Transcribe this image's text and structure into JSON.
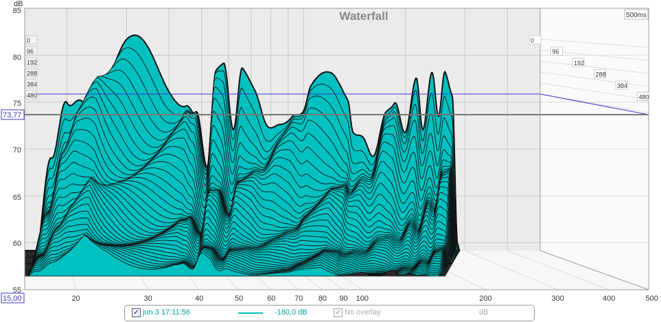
{
  "chart_data": {
    "type": "waterfall",
    "title": "Waterfall",
    "ylabel": "dB",
    "xlabel": "Hz",
    "ylim": [
      55,
      85
    ],
    "xlim": [
      15,
      500
    ],
    "xscale": "log",
    "y_ticks": [
      "85",
      "80",
      "75",
      "70",
      "65",
      "60",
      "55"
    ],
    "x_ticks": [
      "20",
      "30",
      "40",
      "50",
      "60",
      "70",
      "80",
      "90",
      "100",
      "200",
      "300",
      "400",
      "500 Hz"
    ],
    "time_ticks_ms": [
      "0",
      "96",
      "192",
      "288",
      "384",
      "480"
    ],
    "time_range_label": "500ms",
    "cursor_db": "73,77",
    "cursor_freq": "15,00",
    "fill_color": "#00c0c0",
    "top_slice": [
      [
        16,
        58
      ],
      [
        18,
        68
      ],
      [
        20,
        76
      ],
      [
        22,
        78.6
      ],
      [
        24,
        79
      ],
      [
        27,
        78
      ],
      [
        30,
        78.5
      ],
      [
        35,
        78.6
      ],
      [
        40,
        78.4
      ],
      [
        45,
        78
      ],
      [
        48,
        76
      ],
      [
        52,
        68
      ],
      [
        55,
        76.5
      ],
      [
        58,
        76.3
      ],
      [
        62,
        70
      ],
      [
        66,
        76.3
      ],
      [
        72,
        76.2
      ],
      [
        78,
        74.5
      ],
      [
        85,
        75.7
      ],
      [
        92,
        75.5
      ],
      [
        100,
        74
      ],
      [
        105,
        75.3
      ],
      [
        120,
        75.2
      ],
      [
        135,
        74.5
      ],
      [
        140,
        72
      ],
      [
        150,
        73
      ],
      [
        160,
        71.5
      ],
      [
        175,
        76.5
      ],
      [
        185,
        76
      ],
      [
        200,
        71
      ],
      [
        215,
        75
      ],
      [
        225,
        70
      ],
      [
        240,
        75.5
      ],
      [
        250,
        72
      ],
      [
        262,
        77.5
      ],
      [
        275,
        76.5
      ],
      [
        285,
        60
      ],
      [
        290,
        59
      ]
    ]
  },
  "legend": {
    "measurement": "jun 3 17:11:56",
    "level": "-180,0 dB",
    "overlay": "No overlay",
    "unit": "dB"
  }
}
